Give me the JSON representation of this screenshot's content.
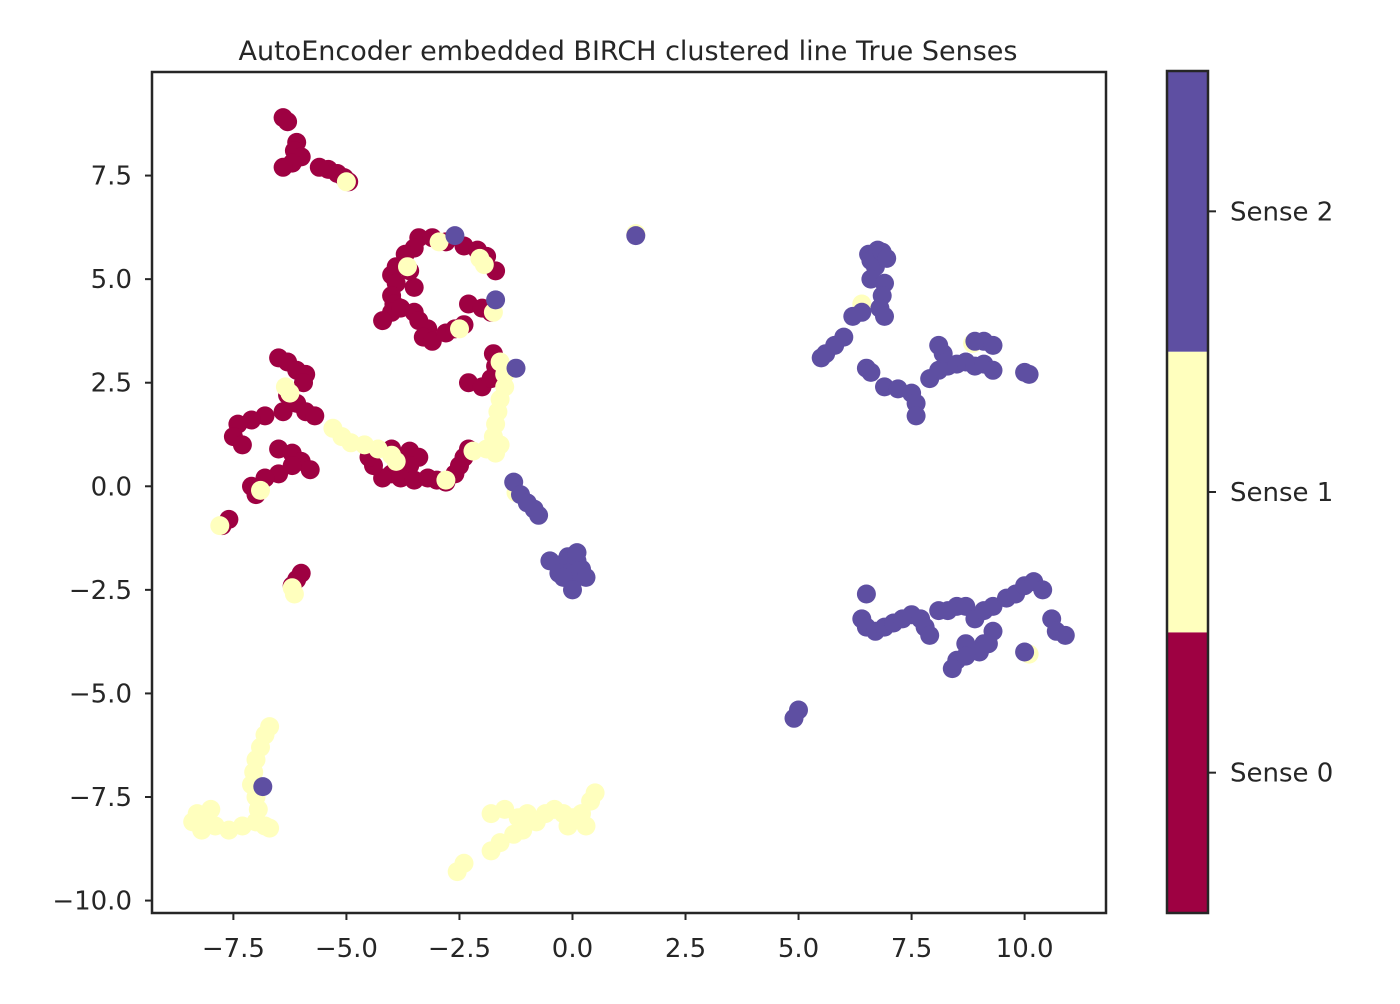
{
  "chart_data": {
    "type": "scatter",
    "title": "AutoEncoder embedded BIRCH clustered line True Senses",
    "xlabel": "",
    "ylabel": "",
    "xlim": [
      -9.3,
      11.8
    ],
    "ylim": [
      -10.3,
      10.0
    ],
    "xticks": [
      -7.5,
      -5.0,
      -2.5,
      0.0,
      2.5,
      5.0,
      7.5,
      10.0
    ],
    "xtick_labels": [
      "−7.5",
      "−5.0",
      "−2.5",
      "0.0",
      "2.5",
      "5.0",
      "7.5",
      "10.0"
    ],
    "yticks": [
      -10.0,
      -7.5,
      -5.0,
      -2.5,
      0.0,
      2.5,
      5.0,
      7.5
    ],
    "ytick_labels": [
      "−10.0",
      "−7.5",
      "−5.0",
      "−2.5",
      "0.0",
      "2.5",
      "5.0",
      "7.5"
    ],
    "grid": false,
    "colorbar": {
      "labels": [
        "Sense 0",
        "Sense 1",
        "Sense 2"
      ],
      "colors": [
        "#9e0142",
        "#ffffbe",
        "#5e4fa2"
      ]
    },
    "series": [
      {
        "sense": 0,
        "color": "#9e0142",
        "points": [
          [
            -6.4,
            8.9
          ],
          [
            -6.3,
            8.8
          ],
          [
            -6.1,
            8.3
          ],
          [
            -6.15,
            8.1
          ],
          [
            -6.0,
            7.95
          ],
          [
            -6.2,
            7.8
          ],
          [
            -6.4,
            7.7
          ],
          [
            -5.6,
            7.7
          ],
          [
            -5.4,
            7.65
          ],
          [
            -5.2,
            7.55
          ],
          [
            -5.05,
            7.45
          ],
          [
            -4.95,
            7.35
          ],
          [
            -3.4,
            6.0
          ],
          [
            -3.1,
            6.0
          ],
          [
            -2.8,
            5.9
          ],
          [
            -2.4,
            5.8
          ],
          [
            -2.1,
            5.7
          ],
          [
            -1.9,
            5.55
          ],
          [
            -1.7,
            5.2
          ],
          [
            -3.5,
            5.75
          ],
          [
            -3.7,
            5.6
          ],
          [
            -3.9,
            5.3
          ],
          [
            -4.0,
            5.1
          ],
          [
            -3.9,
            4.9
          ],
          [
            -4.0,
            4.6
          ],
          [
            -3.95,
            4.4
          ],
          [
            -4.0,
            4.2
          ],
          [
            -4.2,
            4.0
          ],
          [
            -3.8,
            4.3
          ],
          [
            -3.5,
            4.2
          ],
          [
            -3.4,
            4.0
          ],
          [
            -3.2,
            3.8
          ],
          [
            -3.3,
            3.6
          ],
          [
            -3.1,
            3.5
          ],
          [
            -2.8,
            3.7
          ],
          [
            -2.6,
            3.8
          ],
          [
            -2.4,
            3.9
          ],
          [
            -2.3,
            4.4
          ],
          [
            -2.0,
            4.3
          ],
          [
            -1.8,
            4.2
          ],
          [
            -3.5,
            4.8
          ],
          [
            -3.6,
            5.2
          ],
          [
            -6.5,
            3.1
          ],
          [
            -6.3,
            3.0
          ],
          [
            -6.1,
            2.8
          ],
          [
            -5.9,
            2.7
          ],
          [
            -5.95,
            2.5
          ],
          [
            -6.3,
            2.2
          ],
          [
            -6.1,
            2.0
          ],
          [
            -5.9,
            1.8
          ],
          [
            -5.7,
            1.7
          ],
          [
            -6.4,
            1.8
          ],
          [
            -6.8,
            1.7
          ],
          [
            -7.1,
            1.6
          ],
          [
            -7.4,
            1.5
          ],
          [
            -7.5,
            1.2
          ],
          [
            -7.3,
            1.0
          ],
          [
            -6.5,
            0.9
          ],
          [
            -6.2,
            0.8
          ],
          [
            -6.0,
            0.6
          ],
          [
            -5.8,
            0.4
          ],
          [
            -6.2,
            0.5
          ],
          [
            -6.5,
            0.3
          ],
          [
            -6.8,
            0.2
          ],
          [
            -7.1,
            0.0
          ],
          [
            -7.0,
            -0.2
          ],
          [
            -7.6,
            -0.8
          ],
          [
            -7.75,
            -0.95
          ],
          [
            -4.0,
            0.9
          ],
          [
            -3.6,
            0.85
          ],
          [
            -3.4,
            0.7
          ],
          [
            -3.6,
            0.5
          ],
          [
            -4.0,
            0.3
          ],
          [
            -4.2,
            0.2
          ],
          [
            -3.8,
            0.2
          ],
          [
            -3.5,
            0.15
          ],
          [
            -3.2,
            0.2
          ],
          [
            -3.0,
            0.15
          ],
          [
            -2.8,
            0.1
          ],
          [
            -2.6,
            0.3
          ],
          [
            -2.5,
            0.5
          ],
          [
            -2.4,
            0.7
          ],
          [
            -2.3,
            0.9
          ],
          [
            -4.4,
            0.5
          ],
          [
            -4.5,
            0.7
          ],
          [
            -2.3,
            2.5
          ],
          [
            -2.0,
            2.4
          ],
          [
            -1.8,
            2.6
          ],
          [
            -1.7,
            2.9
          ],
          [
            -1.75,
            3.2
          ],
          [
            -6.0,
            -2.1
          ],
          [
            -6.1,
            -2.25
          ],
          [
            -6.2,
            -2.4
          ]
        ]
      },
      {
        "sense": 1,
        "color": "#ffffbe",
        "points": [
          [
            -5.0,
            7.35
          ],
          [
            -2.95,
            5.9
          ],
          [
            -2.05,
            5.5
          ],
          [
            -1.95,
            5.35
          ],
          [
            -3.65,
            5.3
          ],
          [
            -1.75,
            4.2
          ],
          [
            -2.5,
            3.8
          ],
          [
            -6.35,
            2.4
          ],
          [
            -6.25,
            2.25
          ],
          [
            -1.6,
            3.0
          ],
          [
            -1.5,
            2.7
          ],
          [
            -1.5,
            2.4
          ],
          [
            -1.6,
            2.1
          ],
          [
            -1.65,
            1.8
          ],
          [
            -1.7,
            1.5
          ],
          [
            -1.75,
            1.2
          ],
          [
            -1.6,
            1.0
          ],
          [
            -1.7,
            0.8
          ],
          [
            -1.9,
            0.9
          ],
          [
            -2.2,
            0.85
          ],
          [
            -5.3,
            1.4
          ],
          [
            -5.1,
            1.2
          ],
          [
            -4.9,
            1.05
          ],
          [
            -4.6,
            1.0
          ],
          [
            -4.3,
            0.9
          ],
          [
            -4.0,
            0.75
          ],
          [
            -3.9,
            0.6
          ],
          [
            -2.8,
            0.15
          ],
          [
            -6.9,
            -0.1
          ],
          [
            -7.8,
            -0.95
          ],
          [
            -1.25,
            -0.15
          ],
          [
            -6.2,
            -2.45
          ],
          [
            -6.15,
            -2.6
          ],
          [
            -6.7,
            -5.8
          ],
          [
            -6.8,
            -6.0
          ],
          [
            -6.9,
            -6.3
          ],
          [
            -7.0,
            -6.6
          ],
          [
            -7.05,
            -6.9
          ],
          [
            -7.1,
            -7.2
          ],
          [
            -7.0,
            -7.5
          ],
          [
            -6.95,
            -7.8
          ],
          [
            -7.0,
            -8.1
          ],
          [
            -6.8,
            -8.2
          ],
          [
            -6.7,
            -8.25
          ],
          [
            -7.3,
            -8.2
          ],
          [
            -7.6,
            -8.3
          ],
          [
            -7.9,
            -8.2
          ],
          [
            -8.1,
            -8.0
          ],
          [
            -8.3,
            -7.9
          ],
          [
            -8.4,
            -8.1
          ],
          [
            -8.2,
            -8.3
          ],
          [
            -8.0,
            -7.8
          ],
          [
            -1.8,
            -7.9
          ],
          [
            -1.5,
            -7.8
          ],
          [
            -1.2,
            -8.0
          ],
          [
            -1.0,
            -7.9
          ],
          [
            -0.8,
            -8.1
          ],
          [
            -0.6,
            -7.9
          ],
          [
            -0.4,
            -7.8
          ],
          [
            -0.2,
            -7.9
          ],
          [
            0.0,
            -8.0
          ],
          [
            0.2,
            -7.9
          ],
          [
            0.3,
            -8.2
          ],
          [
            0.4,
            -7.6
          ],
          [
            0.5,
            -7.4
          ],
          [
            -0.1,
            -8.2
          ],
          [
            -1.3,
            -8.4
          ],
          [
            -1.6,
            -8.6
          ],
          [
            -1.8,
            -8.8
          ],
          [
            -2.4,
            -9.1
          ],
          [
            -2.55,
            -9.3
          ],
          [
            -1.1,
            -8.3
          ],
          [
            1.4,
            6.1
          ],
          [
            6.4,
            4.4
          ],
          [
            8.85,
            3.45
          ],
          [
            10.1,
            -4.05
          ]
        ]
      },
      {
        "sense": 2,
        "color": "#5e4fa2",
        "points": [
          [
            -2.6,
            6.05
          ],
          [
            -1.7,
            4.5
          ],
          [
            -1.25,
            2.85
          ],
          [
            -6.85,
            -7.25
          ],
          [
            1.4,
            6.05
          ],
          [
            -1.3,
            0.1
          ],
          [
            -1.15,
            -0.2
          ],
          [
            -1.0,
            -0.4
          ],
          [
            -0.85,
            -0.55
          ],
          [
            -0.75,
            -0.7
          ],
          [
            -0.5,
            -1.8
          ],
          [
            -0.3,
            -1.9
          ],
          [
            -0.1,
            -1.7
          ],
          [
            0.1,
            -1.8
          ],
          [
            0.2,
            -2.0
          ],
          [
            0.3,
            -2.2
          ],
          [
            0.0,
            -2.3
          ],
          [
            -0.1,
            -2.1
          ],
          [
            -0.3,
            -2.1
          ],
          [
            -0.2,
            -2.2
          ],
          [
            0.0,
            -2.5
          ],
          [
            0.1,
            -1.6
          ],
          [
            5.0,
            -5.4
          ],
          [
            4.9,
            -5.6
          ],
          [
            6.55,
            5.6
          ],
          [
            6.6,
            5.45
          ],
          [
            6.7,
            5.3
          ],
          [
            6.6,
            5.0
          ],
          [
            6.75,
            5.7
          ],
          [
            6.85,
            5.65
          ],
          [
            6.95,
            5.5
          ],
          [
            6.9,
            4.9
          ],
          [
            6.85,
            4.6
          ],
          [
            6.8,
            4.3
          ],
          [
            6.9,
            4.1
          ],
          [
            6.4,
            4.2
          ],
          [
            6.2,
            4.1
          ],
          [
            6.0,
            3.6
          ],
          [
            5.8,
            3.4
          ],
          [
            5.6,
            3.2
          ],
          [
            5.5,
            3.1
          ],
          [
            6.5,
            2.85
          ],
          [
            6.6,
            2.75
          ],
          [
            6.9,
            2.4
          ],
          [
            7.2,
            2.35
          ],
          [
            7.5,
            2.25
          ],
          [
            7.6,
            2.0
          ],
          [
            7.6,
            1.7
          ],
          [
            7.9,
            2.6
          ],
          [
            8.1,
            2.8
          ],
          [
            8.3,
            2.9
          ],
          [
            8.5,
            2.95
          ],
          [
            8.7,
            3.0
          ],
          [
            8.9,
            2.9
          ],
          [
            9.1,
            2.95
          ],
          [
            9.3,
            2.8
          ],
          [
            8.2,
            3.2
          ],
          [
            8.1,
            3.4
          ],
          [
            8.9,
            3.5
          ],
          [
            9.1,
            3.5
          ],
          [
            9.3,
            3.4
          ],
          [
            10.0,
            2.75
          ],
          [
            10.1,
            2.7
          ],
          [
            6.5,
            -2.6
          ],
          [
            6.4,
            -3.2
          ],
          [
            6.5,
            -3.4
          ],
          [
            6.7,
            -3.5
          ],
          [
            6.9,
            -3.4
          ],
          [
            7.1,
            -3.3
          ],
          [
            7.3,
            -3.2
          ],
          [
            7.5,
            -3.1
          ],
          [
            7.7,
            -3.2
          ],
          [
            7.8,
            -3.4
          ],
          [
            7.9,
            -3.6
          ],
          [
            8.1,
            -3.0
          ],
          [
            8.3,
            -3.0
          ],
          [
            8.5,
            -2.9
          ],
          [
            8.7,
            -2.9
          ],
          [
            8.9,
            -3.2
          ],
          [
            9.1,
            -3.0
          ],
          [
            9.3,
            -2.9
          ],
          [
            9.6,
            -2.7
          ],
          [
            9.8,
            -2.6
          ],
          [
            10.0,
            -2.4
          ],
          [
            10.2,
            -2.3
          ],
          [
            10.4,
            -2.5
          ],
          [
            10.6,
            -3.2
          ],
          [
            10.7,
            -3.5
          ],
          [
            10.9,
            -3.6
          ],
          [
            9.3,
            -3.5
          ],
          [
            9.1,
            -3.8
          ],
          [
            9.0,
            -4.0
          ],
          [
            8.7,
            -3.8
          ],
          [
            8.5,
            -4.2
          ],
          [
            8.4,
            -4.4
          ],
          [
            8.7,
            -4.1
          ],
          [
            9.2,
            -3.8
          ],
          [
            10.0,
            -4.0
          ]
        ]
      }
    ]
  }
}
